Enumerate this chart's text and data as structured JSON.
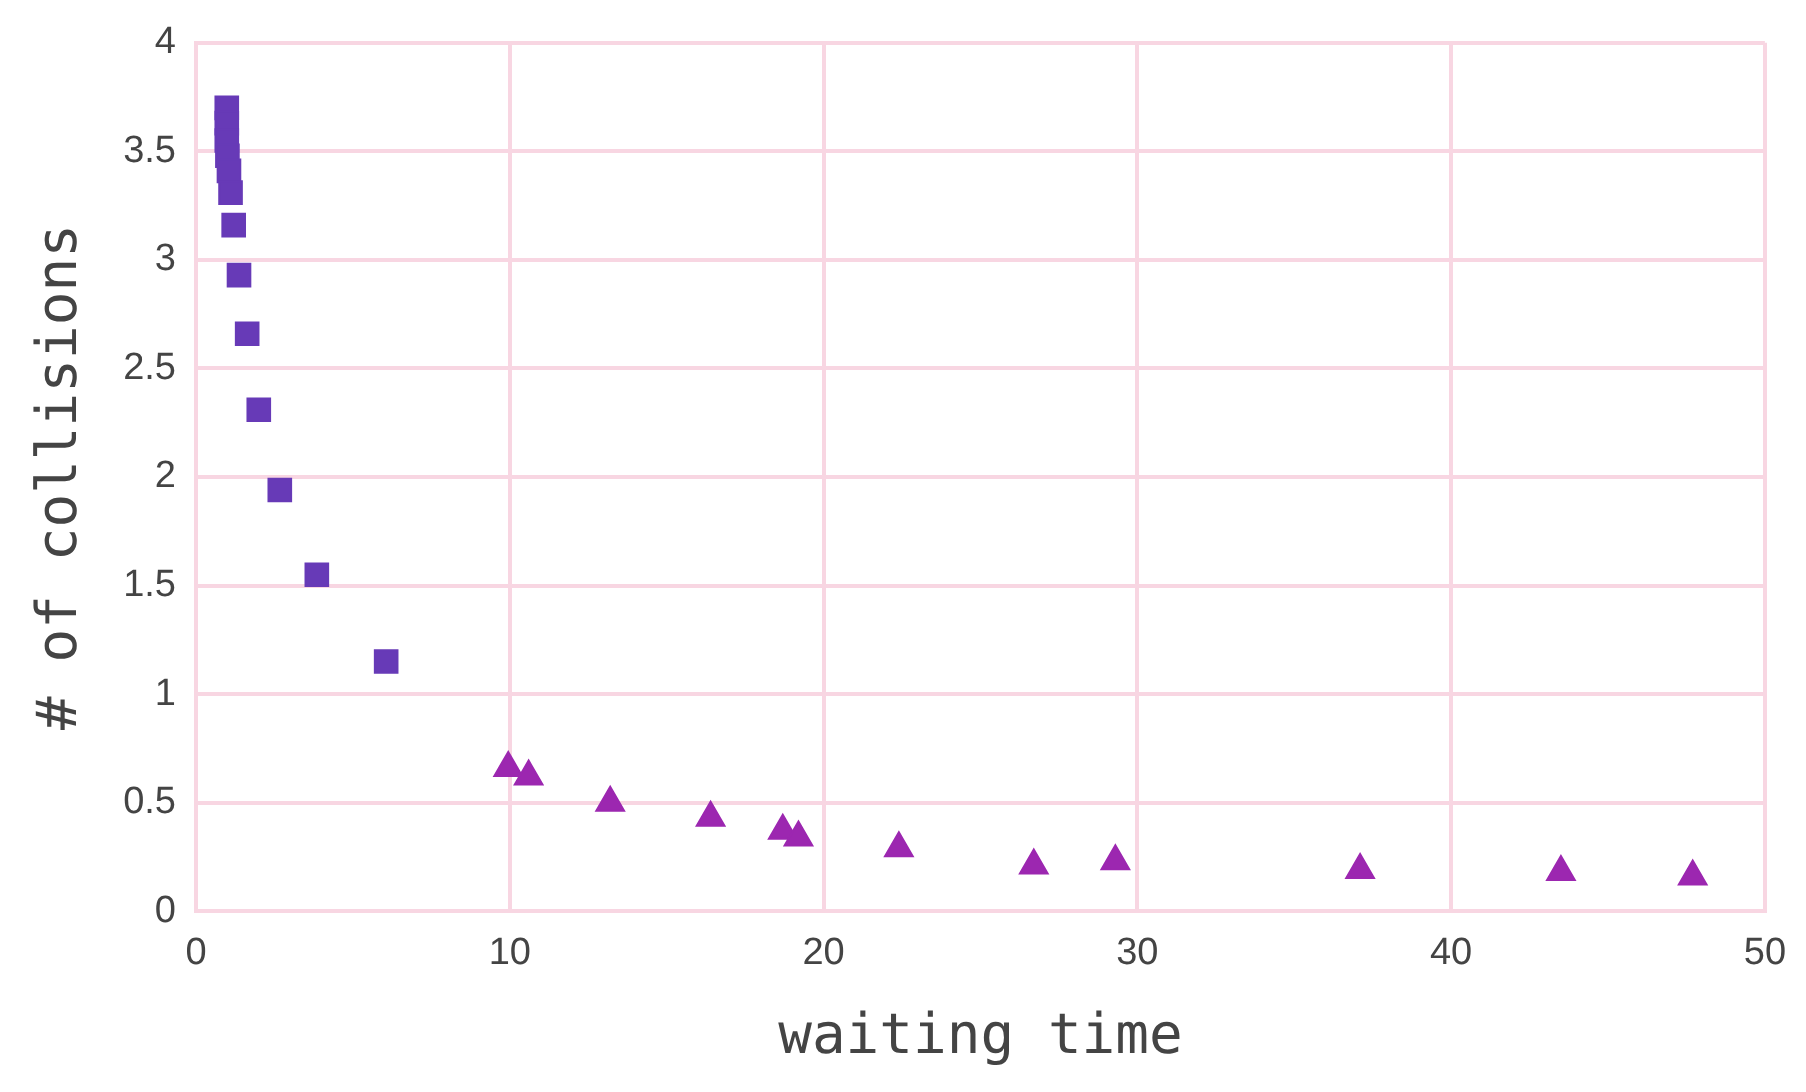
{
  "chart_data": {
    "type": "scatter",
    "xlabel": "waiting time",
    "ylabel": "# of collisions",
    "xlim": [
      0,
      50
    ],
    "xticks": [
      0,
      10,
      20,
      30,
      40,
      50
    ],
    "ylim": [
      0,
      4
    ],
    "yticks": [
      0,
      0.5,
      1,
      1.5,
      2,
      2.5,
      3,
      3.5,
      4
    ],
    "grid": true,
    "legend": false,
    "series": [
      {
        "color": "#673ab7",
        "marker": "square",
        "x": [
          0.98,
          0.98,
          0.98,
          1.0,
          1.05,
          1.1,
          1.2,
          1.37,
          1.63,
          2.0,
          2.67,
          3.85,
          6.06
        ],
        "values": [
          3.7,
          3.63,
          3.55,
          3.48,
          3.41,
          3.31,
          3.16,
          2.93,
          2.66,
          2.31,
          1.94,
          1.55,
          1.15
        ]
      },
      {
        "color": "#9c27b0",
        "marker": "triangle",
        "x": [
          9.95,
          10.6,
          13.2,
          16.4,
          18.7,
          19.2,
          22.4,
          26.7,
          29.3,
          37.1,
          43.5,
          47.7
        ],
        "values": [
          0.66,
          0.62,
          0.5,
          0.43,
          0.37,
          0.34,
          0.29,
          0.21,
          0.23,
          0.19,
          0.18,
          0.16
        ]
      }
    ]
  }
}
